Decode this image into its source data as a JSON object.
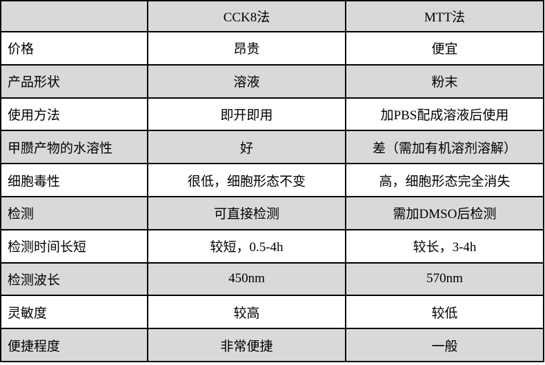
{
  "table": {
    "columns": [
      "",
      "CCK8法",
      "MTT法"
    ],
    "rows": [
      {
        "label": "价格",
        "cck8": "昂贵",
        "mtt": "便宜"
      },
      {
        "label": "产品形状",
        "cck8": "溶液",
        "mtt": "粉末"
      },
      {
        "label": "使用方法",
        "cck8": "即开即用",
        "mtt": "加PBS配成溶液后使用"
      },
      {
        "label": "甲臜产物的水溶性",
        "cck8": "好",
        "mtt": "差（需加有机溶剂溶解）"
      },
      {
        "label": "细胞毒性",
        "cck8": "很低，细胞形态不变",
        "mtt": "高，细胞形态完全消失"
      },
      {
        "label": "检测",
        "cck8": "可直接检测",
        "mtt": "需加DMSO后检测"
      },
      {
        "label": "检测时间长短",
        "cck8": "较短，0.5-4h",
        "mtt": "较长，3-4h"
      },
      {
        "label": "检测波长",
        "cck8": "450nm",
        "mtt": "570nm"
      },
      {
        "label": "灵敏度",
        "cck8": "较高",
        "mtt": "较低"
      },
      {
        "label": "便捷程度",
        "cck8": "非常便捷",
        "mtt": "一般"
      }
    ],
    "colors": {
      "shaded_row_bg": "#d9d9d9",
      "plain_row_bg": "#ffffff",
      "border": "#000000",
      "text": "#000000"
    }
  }
}
